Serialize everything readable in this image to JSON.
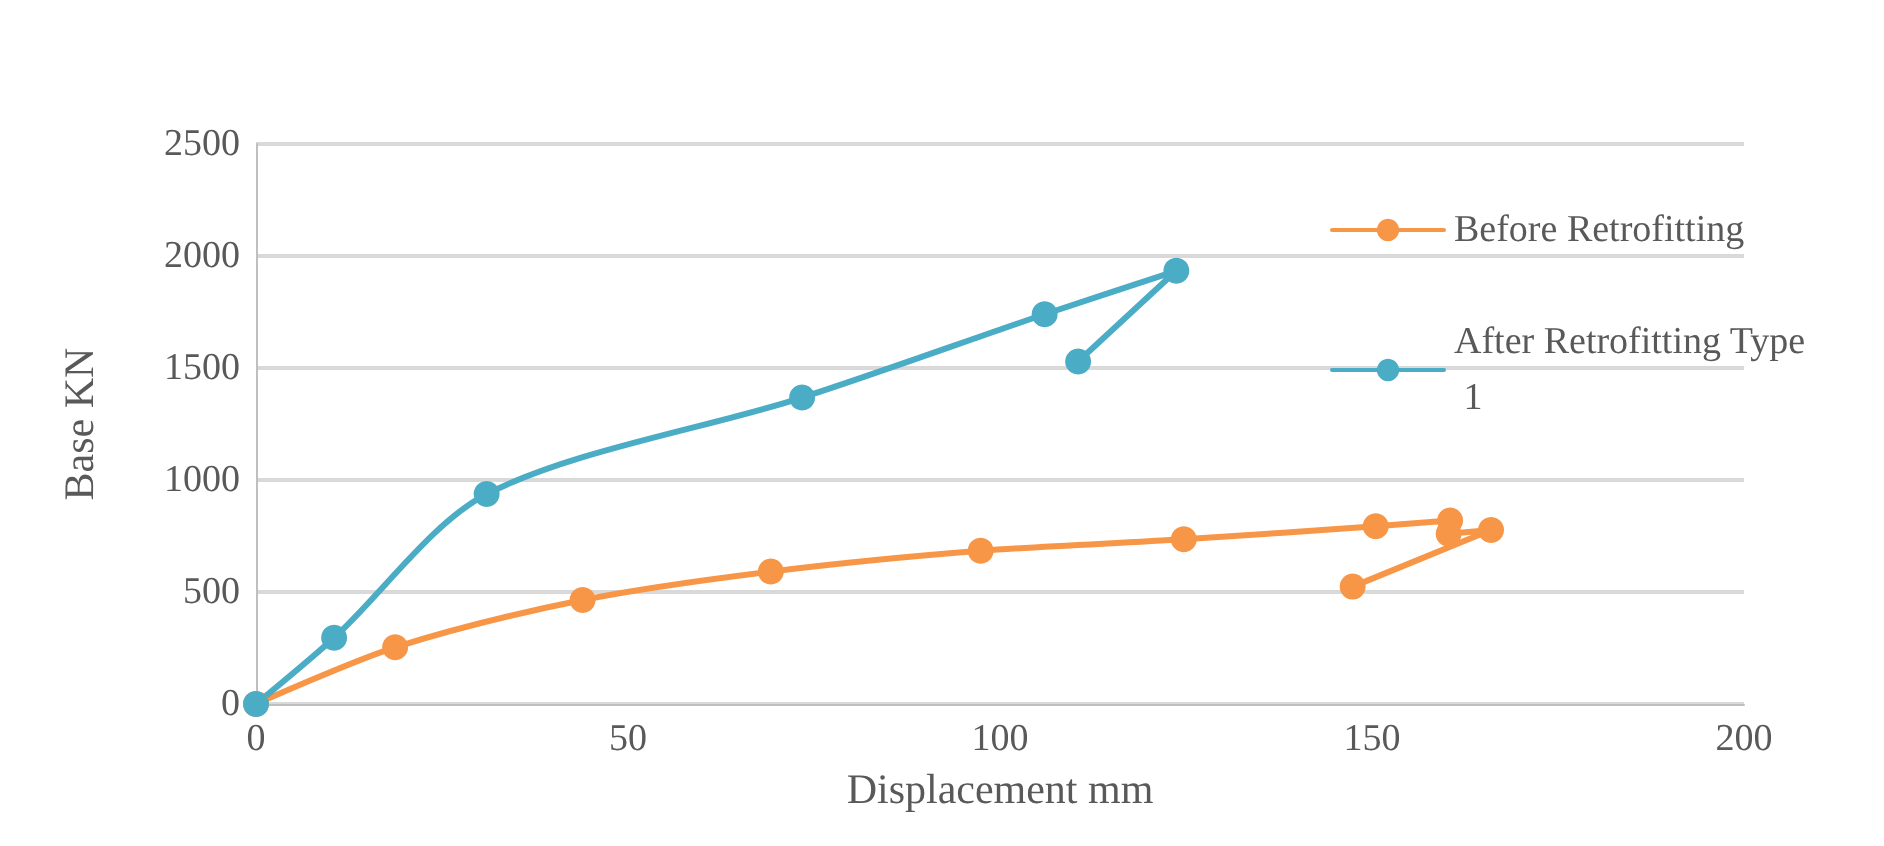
{
  "chart_data": {
    "type": "line",
    "xlabel": "Displacement mm",
    "ylabel": "Base KN",
    "xlim": [
      0,
      200
    ],
    "xticks": [
      0,
      50,
      100,
      150,
      200
    ],
    "ylim": [
      0,
      2500
    ],
    "yticks": [
      0,
      500,
      1000,
      1500,
      2000,
      2500
    ],
    "grid": "y",
    "legend": "top right",
    "marker": "circle",
    "line_style": "solid",
    "series": [
      {
        "name": "Before Retrofitting",
        "color": "#f79646",
        "x": [
          0,
          18.7,
          43.9,
          69.2,
          97.4,
          124.7,
          150.5,
          160.5,
          160.3,
          166,
          147.4
        ],
        "values": [
          0,
          253,
          464,
          591,
          684,
          735,
          794,
          819,
          760,
          777,
          524
        ]
      },
      {
        "name": "After Retrofitting Type 1",
        "color": "#4bacc6",
        "x": [
          0,
          10.5,
          31,
          73.4,
          106,
          123.7,
          110.5
        ],
        "values": [
          0,
          296,
          937,
          1368,
          1740,
          1934,
          1529
        ]
      }
    ]
  }
}
